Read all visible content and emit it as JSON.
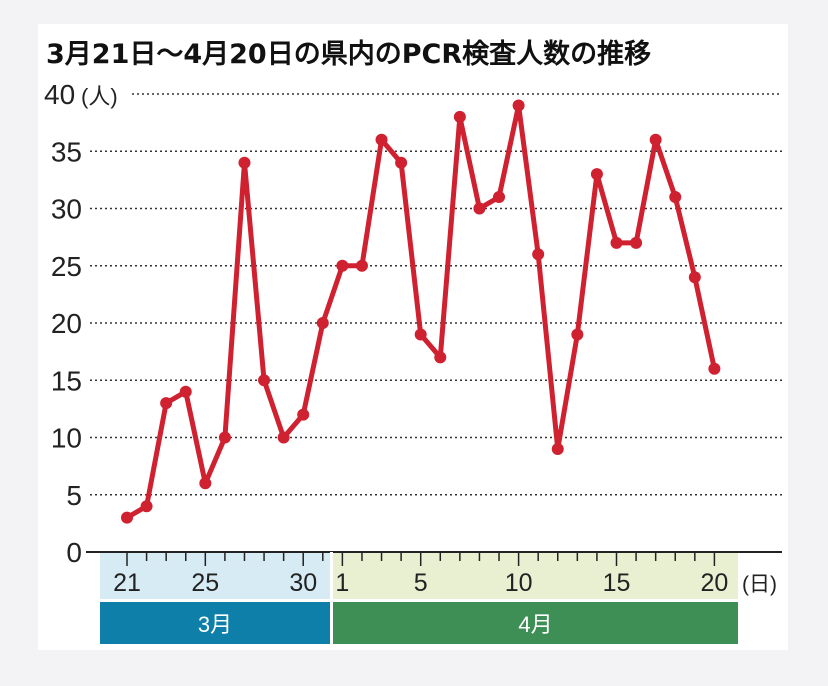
{
  "chart_data": {
    "type": "line",
    "title": "3月21日〜4月20日の県内のPCR検査人数の推移",
    "ylabel": "",
    "y_unit": "(人)",
    "x_unit": "(日)",
    "ylim": [
      0,
      40
    ],
    "yticks": [
      0,
      5,
      10,
      15,
      20,
      25,
      30,
      35,
      40
    ],
    "grid": "horizontal-dotted",
    "months": [
      {
        "label": "3月",
        "start_day": 21,
        "end_day": 31,
        "color": "#0d7fa8",
        "band_color": "#d6ebf4"
      },
      {
        "label": "4月",
        "start_day": 1,
        "end_day": 20,
        "color": "#3e8f56",
        "band_color": "#e9f0d2"
      }
    ],
    "xtick_labels": [
      {
        "date": "3/21",
        "label": "21"
      },
      {
        "date": "3/25",
        "label": "25"
      },
      {
        "date": "3/30",
        "label": "30"
      },
      {
        "date": "4/1",
        "label": "1"
      },
      {
        "date": "4/5",
        "label": "5"
      },
      {
        "date": "4/10",
        "label": "10"
      },
      {
        "date": "4/15",
        "label": "15"
      },
      {
        "date": "4/20",
        "label": "20"
      }
    ],
    "series": [
      {
        "color": "#cf2130",
        "points": [
          {
            "x": "3/21",
            "y": 3
          },
          {
            "x": "3/22",
            "y": 4
          },
          {
            "x": "3/23",
            "y": 13
          },
          {
            "x": "3/24",
            "y": 14
          },
          {
            "x": "3/25",
            "y": 6
          },
          {
            "x": "3/26",
            "y": 10
          },
          {
            "x": "3/27",
            "y": 34
          },
          {
            "x": "3/28",
            "y": 15
          },
          {
            "x": "3/29",
            "y": 10
          },
          {
            "x": "3/30",
            "y": 12
          },
          {
            "x": "3/31",
            "y": 20
          },
          {
            "x": "4/1",
            "y": 25
          },
          {
            "x": "4/2",
            "y": 25
          },
          {
            "x": "4/3",
            "y": 36
          },
          {
            "x": "4/4",
            "y": 34
          },
          {
            "x": "4/5",
            "y": 19
          },
          {
            "x": "4/6",
            "y": 17
          },
          {
            "x": "4/7",
            "y": 38
          },
          {
            "x": "4/8",
            "y": 30
          },
          {
            "x": "4/9",
            "y": 31
          },
          {
            "x": "4/10",
            "y": 39
          },
          {
            "x": "4/11",
            "y": 26
          },
          {
            "x": "4/12",
            "y": 9
          },
          {
            "x": "4/13",
            "y": 19
          },
          {
            "x": "4/14",
            "y": 33
          },
          {
            "x": "4/15",
            "y": 27
          },
          {
            "x": "4/16",
            "y": 27
          },
          {
            "x": "4/17",
            "y": 36
          },
          {
            "x": "4/18",
            "y": 31
          },
          {
            "x": "4/19",
            "y": 24
          },
          {
            "x": "4/20",
            "y": 16
          }
        ]
      }
    ]
  }
}
